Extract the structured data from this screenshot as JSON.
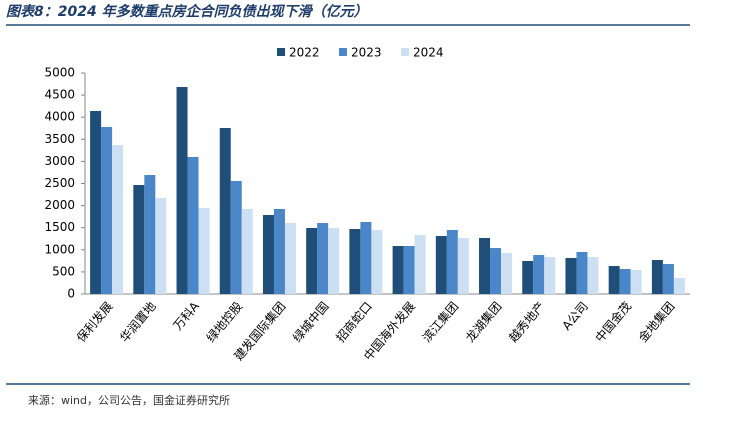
{
  "chart_data": {
    "type": "bar",
    "title": "图表8：2024 年多数重点房企合同负债出现下滑（亿元）",
    "source": "来源：wind，公司公告，国金证券研究所",
    "categories": [
      "保利发展",
      "华润置地",
      "万科A",
      "绿地控股",
      "建发国际集团",
      "绿城中国",
      "招商蛇口",
      "中国海外发展",
      "滨江集团",
      "龙湖集团",
      "越秀地产",
      "A公司",
      "中国金茂",
      "金地集团"
    ],
    "series": [
      {
        "name": "2022",
        "color": "#1f4e79",
        "values": [
          4140,
          2466,
          4683,
          3756,
          1787,
          1493,
          1470,
          1086,
          1312,
          1267,
          747,
          814,
          633,
          769
        ]
      },
      {
        "name": "2023",
        "color": "#4a86c8",
        "values": [
          3778,
          2692,
          3100,
          2557,
          1923,
          1606,
          1629,
          1086,
          1448,
          1040,
          882,
          950,
          566,
          679
        ]
      },
      {
        "name": "2024",
        "color": "#cde0f3",
        "values": [
          3371,
          2172,
          1946,
          1923,
          1606,
          1493,
          1448,
          1335,
          1267,
          928,
          837,
          837,
          543,
          362
        ]
      }
    ],
    "ylim": [
      0,
      5000
    ],
    "yticks": [
      0,
      500,
      1000,
      1500,
      2000,
      2500,
      3000,
      3500,
      4000,
      4500,
      5000
    ],
    "legend": "top",
    "grid": false
  }
}
